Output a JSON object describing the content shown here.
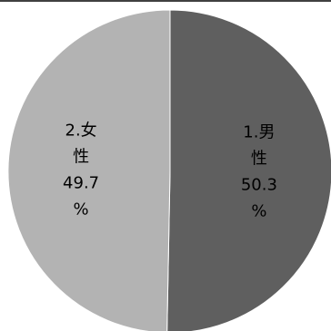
{
  "chart_data": {
    "type": "pie",
    "start_angle_deg": 0,
    "direction": "clockwise",
    "slices": [
      {
        "label": "1.男性",
        "value": 50.3,
        "unit": "%",
        "color": "#5f5f5f",
        "text_color": "#ffffff",
        "label_lines": [
          "1.男",
          "性",
          "50.3",
          "%"
        ]
      },
      {
        "label": "2.女性",
        "value": 49.7,
        "unit": "%",
        "color": "#b3b3b3",
        "text_color": "#000000",
        "label_lines": [
          "2.女",
          "性",
          "49.7",
          "%"
        ]
      }
    ]
  }
}
